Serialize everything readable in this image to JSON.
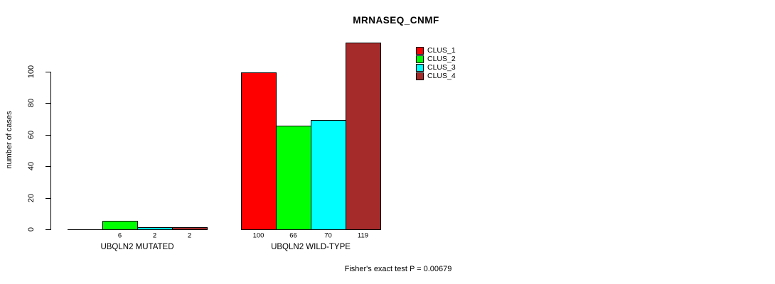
{
  "chart_data": {
    "type": "bar",
    "title": "MRNASEQ_CNMF",
    "ylabel": "number of cases",
    "xlabel": "",
    "annotation": "Fisher's exact test P = 0.00679",
    "categories": [
      "UBQLN2 MUTATED",
      "UBQLN2 WILD-TYPE"
    ],
    "series": [
      {
        "name": "CLUS_1",
        "color": "#FF0000",
        "values": [
          0,
          100
        ],
        "value_labels": [
          "",
          "100"
        ]
      },
      {
        "name": "CLUS_2",
        "color": "#00FF00",
        "values": [
          6,
          66
        ],
        "value_labels": [
          "6",
          "66"
        ]
      },
      {
        "name": "CLUS_3",
        "color": "#00FFFF",
        "values": [
          2,
          70
        ],
        "value_labels": [
          "2",
          "70"
        ]
      },
      {
        "name": "CLUS_4",
        "color": "#A52A2A",
        "values": [
          2,
          119
        ],
        "value_labels": [
          "2",
          "119"
        ]
      }
    ],
    "yticks": [
      0,
      20,
      40,
      60,
      80,
      100
    ],
    "ylim": [
      0,
      119
    ],
    "grid": false,
    "legend_position": "top-right",
    "background_color": "#FFFFFF",
    "axis_color": "#000000"
  }
}
